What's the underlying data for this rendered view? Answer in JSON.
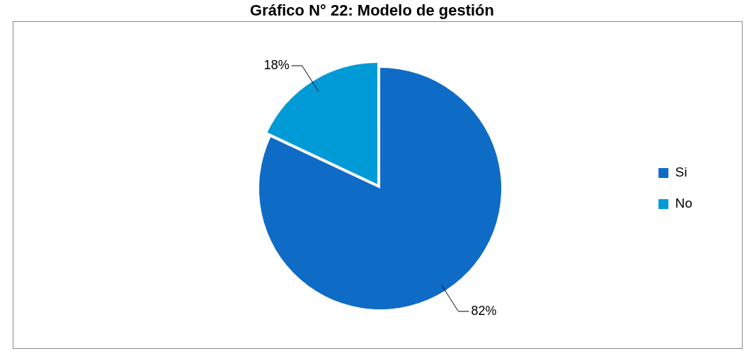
{
  "chart_data": {
    "type": "pie",
    "title": "Gráfico N° 22: Modelo de gestión",
    "categories": [
      "Si",
      "No"
    ],
    "values": [
      82,
      18
    ],
    "colors": [
      "#0f6cc6",
      "#009ad6"
    ],
    "value_labels": [
      "82%",
      "18%"
    ],
    "legend": "right"
  }
}
